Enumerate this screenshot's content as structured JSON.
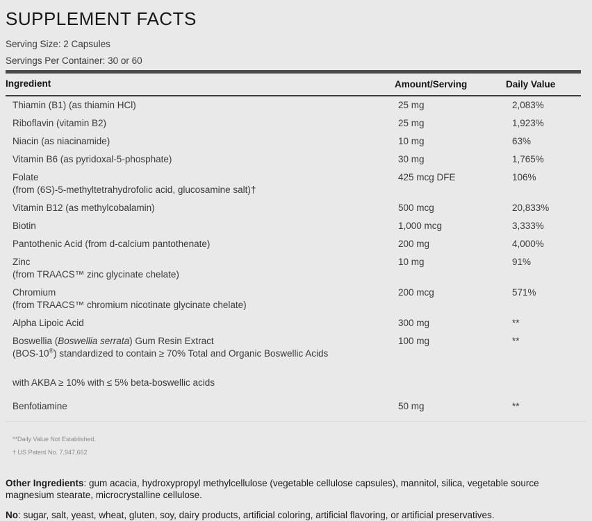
{
  "title": "SUPPLEMENT FACTS",
  "serving": {
    "size": "Serving Size: 2 Capsules",
    "per_container": "Servings Per Container: 30 or 60"
  },
  "table": {
    "headers": {
      "ingredient": "Ingredient",
      "amount": "Amount/Serving",
      "daily_value": "Daily Value"
    },
    "rows": [
      {
        "name": "Thiamin (B1) (as thiamin HCl)",
        "amount": "25 mg",
        "dv": "2,083%"
      },
      {
        "name": "Riboflavin (vitamin B2)",
        "amount": "25 mg",
        "dv": "1,923%"
      },
      {
        "name": "Niacin (as niacinamide)",
        "amount": "10 mg",
        "dv": "63%"
      },
      {
        "name": "Vitamin B6 (as pyridoxal-5-phosphate)",
        "amount": "30 mg",
        "dv": "1,765%"
      },
      {
        "name": "Folate",
        "sub": "(from (6S)-5-methyltetrahydrofolic acid, glucosamine salt)†",
        "amount": "425 mcg DFE",
        "dv": "106%"
      },
      {
        "name": "Vitamin B12 (as methylcobalamin)",
        "amount": "500 mcg",
        "dv": "20,833%"
      },
      {
        "name": "Biotin",
        "amount": "1,000 mcg",
        "dv": "3,333%"
      },
      {
        "name": "Pantothenic Acid (from d-calcium pantothenate)",
        "amount": "200 mg",
        "dv": "4,000%"
      },
      {
        "name": "Zinc",
        "sub": "(from TRAACS™ zinc glycinate chelate)",
        "amount": "10 mg",
        "dv": "91%"
      },
      {
        "name": "Chromium",
        "sub": "(from TRAACS™ chromium nicotinate glycinate chelate)",
        "amount": "200 mcg",
        "dv": "571%"
      },
      {
        "name": "Alpha Lipoic Acid",
        "amount": "300 mg",
        "dv": "**"
      },
      {
        "name_pre": "Boswellia (",
        "name_italic": "Boswellia serrata",
        "name_post": ") Gum Resin Extract",
        "sub_pre": "(BOS-10",
        "sub_sup": "®",
        "sub_post": ") standardized to contain ≥ 70% Total and Organic Boswellic Acids",
        "sub2": "with AKBA ≥ 10% with ≤ 5% beta-boswellic acids",
        "amount": "100 mg",
        "dv": "**"
      },
      {
        "name": "Benfotiamine",
        "amount": "50 mg",
        "dv": "**"
      }
    ]
  },
  "footnotes": [
    "**Daily Value Not Established.",
    "† US Patent No. 7,947,662"
  ],
  "other_ingredients": {
    "label": "Other Ingredients",
    "text": ": gum acacia, hydroxypropyl methylcellulose (vegetable cellulose capsules), mannitol, silica, vegetable source magnesium stearate, microcrystalline cellulose."
  },
  "no_statement": {
    "label": "No",
    "text": ": sugar, salt, yeast, wheat, gluten, soy, dairy products, artificial coloring, artificial flavoring, or artificial preservatives."
  },
  "colors": {
    "background": "#e9e9e9",
    "thick_bar": "#4a4a4a",
    "header_rule": "#3c3c3c",
    "light_divider": "#dcdcdc",
    "body_text": "#3a3a3a",
    "footnote_text": "#8b8b8b"
  }
}
